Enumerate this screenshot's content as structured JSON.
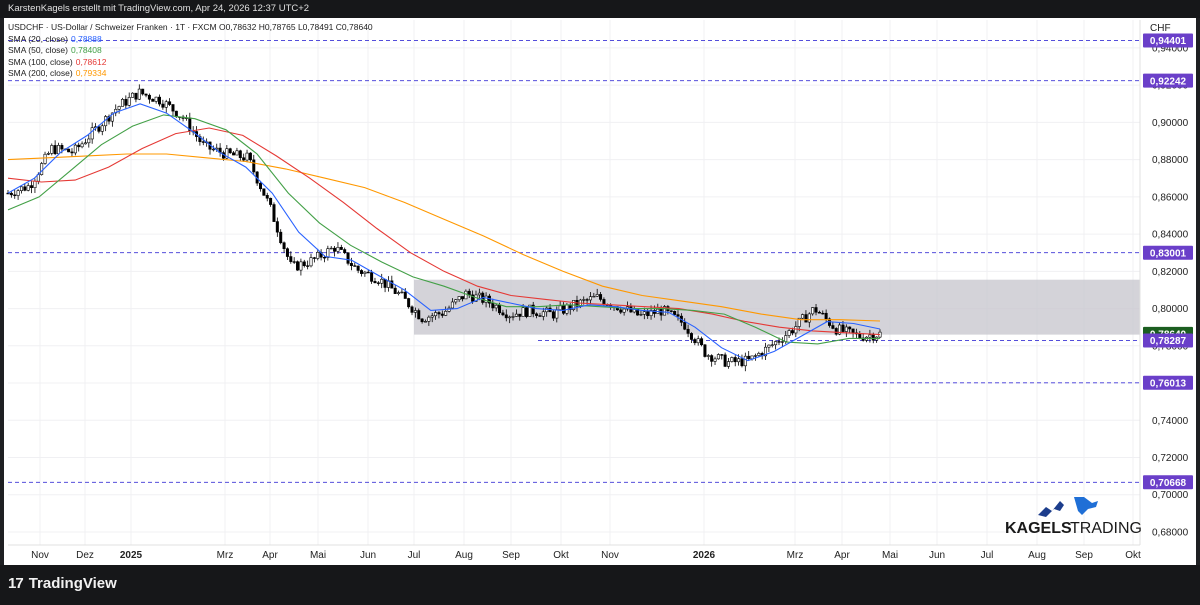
{
  "header": {
    "credit": "KarstenKagels erstellt mit TradingView.com, Apr 24, 2026 12:37 UTC+2"
  },
  "legend": {
    "symbol_line": "USDCHF · US-Dollar / Schweizer Franken · 1T · FXCM",
    "ohlc": {
      "o": "O0,78632",
      "h": "H0,78765",
      "l": "L0,78491",
      "c": "C0,78640"
    },
    "indicators": [
      {
        "label": "SMA (20, close)",
        "value": "0,78888",
        "color": "#2962ff"
      },
      {
        "label": "SMA (50, close)",
        "value": "0,78408",
        "color": "#43a047"
      },
      {
        "label": "SMA (100, close)",
        "value": "0,78612",
        "color": "#e53935"
      },
      {
        "label": "SMA (200, close)",
        "value": "0,79334",
        "color": "#ff9800"
      }
    ]
  },
  "branding": {
    "logo_text_1": "KAGELS",
    "logo_text_2": "TRADING",
    "footer_brand": "TradingView"
  },
  "chart_data": {
    "type": "line",
    "title": "",
    "ylabel": "CHF",
    "y_ticks": [
      "0,94000",
      "0,92000",
      "0,90000",
      "0,88000",
      "0,86000",
      "0,84000",
      "0,82000",
      "0,80000",
      "0,78000",
      "0,76000",
      "0,74000",
      "0,72000",
      "0,70000",
      "0,68000"
    ],
    "y_tick_values": [
      0.94,
      0.92,
      0.9,
      0.88,
      0.86,
      0.84,
      0.82,
      0.8,
      0.78,
      0.76,
      0.74,
      0.72,
      0.7,
      0.68
    ],
    "ylim": [
      0.673,
      0.955
    ],
    "x_ticks": [
      {
        "label": "Nov",
        "bold": false
      },
      {
        "label": "Dez",
        "bold": false
      },
      {
        "label": "2025",
        "bold": true
      },
      {
        "label": "Mrz",
        "bold": false
      },
      {
        "label": "Apr",
        "bold": false
      },
      {
        "label": "Mai",
        "bold": false
      },
      {
        "label": "Jun",
        "bold": false
      },
      {
        "label": "Jul",
        "bold": false
      },
      {
        "label": "Aug",
        "bold": false
      },
      {
        "label": "Sep",
        "bold": false
      },
      {
        "label": "Okt",
        "bold": false
      },
      {
        "label": "Nov",
        "bold": false
      },
      {
        "label": "2026",
        "bold": true
      },
      {
        "label": "Mrz",
        "bold": false
      },
      {
        "label": "Apr",
        "bold": false
      },
      {
        "label": "Mai",
        "bold": false
      },
      {
        "label": "Jun",
        "bold": false
      },
      {
        "label": "Jul",
        "bold": false
      },
      {
        "label": "Aug",
        "bold": false
      },
      {
        "label": "Sep",
        "bold": false
      },
      {
        "label": "Okt",
        "bold": false
      }
    ],
    "price_levels": [
      {
        "label": "0,94401",
        "value": 0.94401,
        "color": "#6a3fc9"
      },
      {
        "label": "0,92242",
        "value": 0.92242,
        "color": "#6a3fc9"
      },
      {
        "label": "0,83001",
        "value": 0.83001,
        "color": "#6a3fc9"
      },
      {
        "label": "0,78640",
        "value": 0.7864,
        "color": "#1b5e20"
      },
      {
        "label": "0,78287",
        "value": 0.78287,
        "color": "#6a3fc9"
      },
      {
        "label": "0,76013",
        "value": 0.76013,
        "color": "#6a3fc9"
      },
      {
        "label": "0,70668",
        "value": 0.70668,
        "color": "#6a3fc9"
      }
    ],
    "range_box": {
      "top": 0.8155,
      "bottom": 0.786,
      "from": "Jul 2025",
      "to": "Okt 2026"
    },
    "price_path": [
      [
        "Okt 2024",
        0.862
      ],
      [
        "Nov 2024",
        0.866
      ],
      [
        "Nov 2024b",
        0.886
      ],
      [
        "Dez 2024",
        0.884
      ],
      [
        "Dez 2024b",
        0.896
      ],
      [
        "Jan 2025",
        0.908
      ],
      [
        "Jan 2025b",
        0.916
      ],
      [
        "Feb 2025",
        0.912
      ],
      [
        "Feb 2025b",
        0.903
      ],
      [
        "Mrz 2025",
        0.887
      ],
      [
        "Mrz 2025b",
        0.883
      ],
      [
        "Apr 2025",
        0.881
      ],
      [
        "Apr 2025b",
        0.855
      ],
      [
        "Apr 2025c",
        0.822
      ],
      [
        "Mai 2025",
        0.826
      ],
      [
        "Mai 2025b",
        0.833
      ],
      [
        "Mai 2025c",
        0.821
      ],
      [
        "Jun 2025",
        0.816
      ],
      [
        "Jun 2025b",
        0.807
      ],
      [
        "Jul 2025",
        0.795
      ],
      [
        "Jul 2025b",
        0.798
      ],
      [
        "Aug 2025",
        0.808
      ],
      [
        "Aug 2025b",
        0.804
      ],
      [
        "Sep 2025",
        0.797
      ],
      [
        "Sep 2025b",
        0.799
      ],
      [
        "Okt 2025",
        0.797
      ],
      [
        "Okt 2025b",
        0.802
      ],
      [
        "Nov 2025",
        0.806
      ],
      [
        "Nov 2025b",
        0.801
      ],
      [
        "Dez 2025",
        0.796
      ],
      [
        "Dez 2025b",
        0.799
      ],
      [
        "Jan 2026",
        0.792
      ],
      [
        "Jan 2026b",
        0.776
      ],
      [
        "Feb 2026",
        0.771
      ],
      [
        "Feb 2026b",
        0.772
      ],
      [
        "Mrz 2026",
        0.78
      ],
      [
        "Mrz 2026b",
        0.789
      ],
      [
        "Apr 2026",
        0.8
      ],
      [
        "Apr 2026b",
        0.789
      ],
      [
        "Apr 2026c",
        0.785
      ],
      [
        "Apr 2026d",
        0.7864
      ]
    ],
    "sma20": [
      0.862,
      0.87,
      0.884,
      0.893,
      0.905,
      0.91,
      0.905,
      0.895,
      0.884,
      0.876,
      0.862,
      0.841,
      0.828,
      0.826,
      0.818,
      0.81,
      0.799,
      0.8,
      0.806,
      0.803,
      0.8,
      0.799,
      0.802,
      0.801,
      0.799,
      0.798,
      0.79,
      0.779,
      0.772,
      0.777,
      0.785,
      0.793,
      0.792,
      0.789
    ],
    "sma50": [
      0.853,
      0.86,
      0.874,
      0.888,
      0.898,
      0.904,
      0.902,
      0.896,
      0.883,
      0.862,
      0.846,
      0.834,
      0.825,
      0.817,
      0.812,
      0.806,
      0.801,
      0.801,
      0.802,
      0.801,
      0.8,
      0.8,
      0.799,
      0.797,
      0.79,
      0.782,
      0.781,
      0.784,
      0.784
    ],
    "sma100": [
      0.87,
      0.868,
      0.869,
      0.876,
      0.886,
      0.894,
      0.897,
      0.893,
      0.882,
      0.87,
      0.857,
      0.843,
      0.83,
      0.82,
      0.812,
      0.807,
      0.805,
      0.803,
      0.802,
      0.801,
      0.8,
      0.797,
      0.793,
      0.79,
      0.788,
      0.787,
      0.786
    ],
    "sma200": [
      0.88,
      0.881,
      0.882,
      0.883,
      0.883,
      0.881,
      0.879,
      0.875,
      0.87,
      0.865,
      0.857,
      0.848,
      0.839,
      0.829,
      0.82,
      0.812,
      0.807,
      0.804,
      0.801,
      0.797,
      0.794,
      0.794,
      0.7933
    ]
  },
  "colors": {
    "band": "#c9c8cf",
    "level_line": "#3d35d6",
    "candle_up": "#000000",
    "candle_down": "#000000"
  }
}
